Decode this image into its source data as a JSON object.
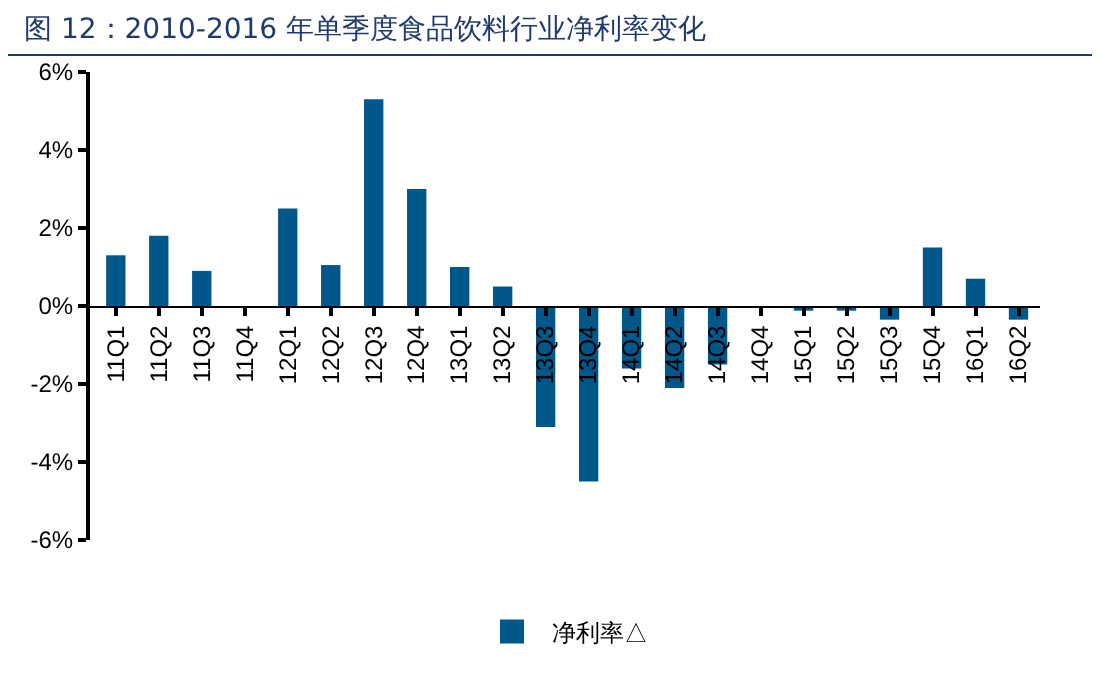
{
  "chart_data": {
    "type": "bar",
    "title": "图 12：2010-2016 年单季度食品饮料行业净利率变化",
    "categories": [
      "11Q1",
      "11Q2",
      "11Q3",
      "11Q4",
      "12Q1",
      "12Q2",
      "12Q3",
      "12Q4",
      "13Q1",
      "13Q2",
      "13Q3",
      "13Q4",
      "14Q1",
      "14Q2",
      "14Q3",
      "14Q4",
      "15Q1",
      "15Q2",
      "15Q3",
      "15Q4",
      "16Q1",
      "16Q2"
    ],
    "series": [
      {
        "name": "净利率△",
        "color": "#00578a",
        "values": [
          1.3,
          1.8,
          0.9,
          0,
          2.5,
          1.05,
          5.3,
          3.0,
          1.0,
          0.5,
          -3.1,
          -4.5,
          -1.6,
          -2.1,
          -1.5,
          0,
          -0.12,
          -0.12,
          -0.35,
          1.5,
          0.7,
          -0.35
        ]
      }
    ],
    "ylim": [
      -6,
      6
    ],
    "yticks": [
      {
        "value": -6,
        "label": "-6%"
      },
      {
        "value": -4,
        "label": "-4%"
      },
      {
        "value": -2,
        "label": "-2%"
      },
      {
        "value": 0,
        "label": "0%"
      },
      {
        "value": 2,
        "label": "2%"
      },
      {
        "value": 4,
        "label": "4%"
      },
      {
        "value": 6,
        "label": "6%"
      }
    ],
    "grid": false,
    "legend": "bottom"
  }
}
